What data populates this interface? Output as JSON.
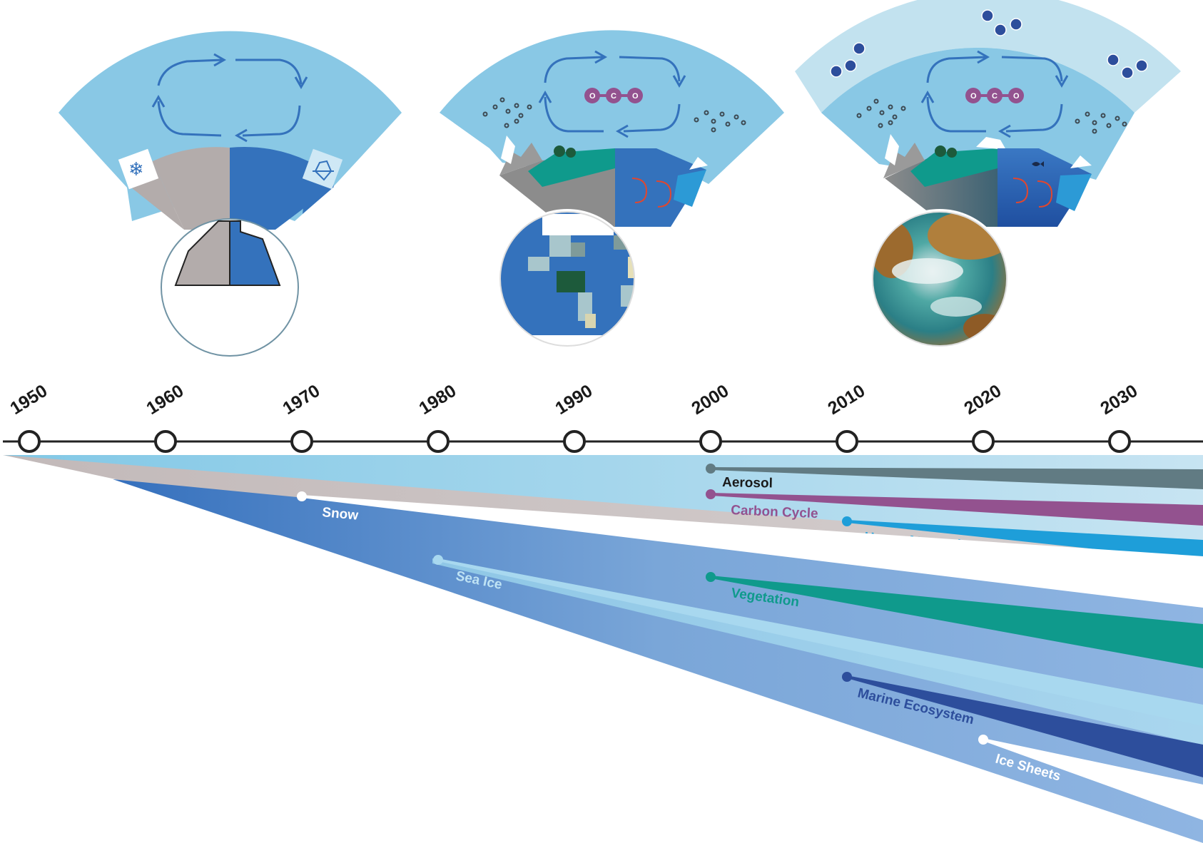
{
  "timeline": {
    "years": [
      "1950",
      "1960",
      "1970",
      "1980",
      "1990",
      "2000",
      "2010",
      "2020",
      "2030"
    ]
  },
  "components": [
    {
      "label": "Aerosol",
      "start_year": 2000,
      "color": "#617b83",
      "text_color": "#1a1a1a"
    },
    {
      "label": "Carbon Cycle",
      "start_year": 2000,
      "color": "#93528f",
      "text_color": "#93528f"
    },
    {
      "label": "Upper Atmosphere",
      "start_year": 2010,
      "color": "#1e9ed9",
      "text_color": "#1e9ed9"
    },
    {
      "label": "Snow",
      "start_year": 1970,
      "color": "#ffffff",
      "text_color": "#ffffff"
    },
    {
      "label": "Vegetation",
      "start_year": 2000,
      "color": "#0f9a8c",
      "text_color": "#0f9a8c"
    },
    {
      "label": "Sea Ice",
      "start_year": 1980,
      "color": "#a8d8ef",
      "text_color": "#bfe3f4"
    },
    {
      "label": "Marine Ecosystem",
      "start_year": 2010,
      "color": "#2d4e9c",
      "text_color": "#2d4e9c"
    },
    {
      "label": "Ice Sheets",
      "start_year": 2020,
      "color": "#ffffff",
      "text_color": "#ffffff"
    }
  ],
  "eras": [
    {
      "name": "early-model",
      "atmosphere": "light-blue",
      "land": "gray",
      "ocean": "blue"
    },
    {
      "name": "intermediate-model",
      "molecule": [
        "O",
        "C",
        "O"
      ]
    },
    {
      "name": "modern-model",
      "molecule": [
        "O",
        "C",
        "O"
      ],
      "extra_molecules": 3
    }
  ],
  "colors": {
    "atmosphere": "#89c8e5",
    "upper_atmosphere": "#c2e2ef",
    "land_gray": "#b3acab",
    "ocean_blue": "#3472bc",
    "vegetation": "#0f9a8c",
    "axis": "#222222"
  }
}
